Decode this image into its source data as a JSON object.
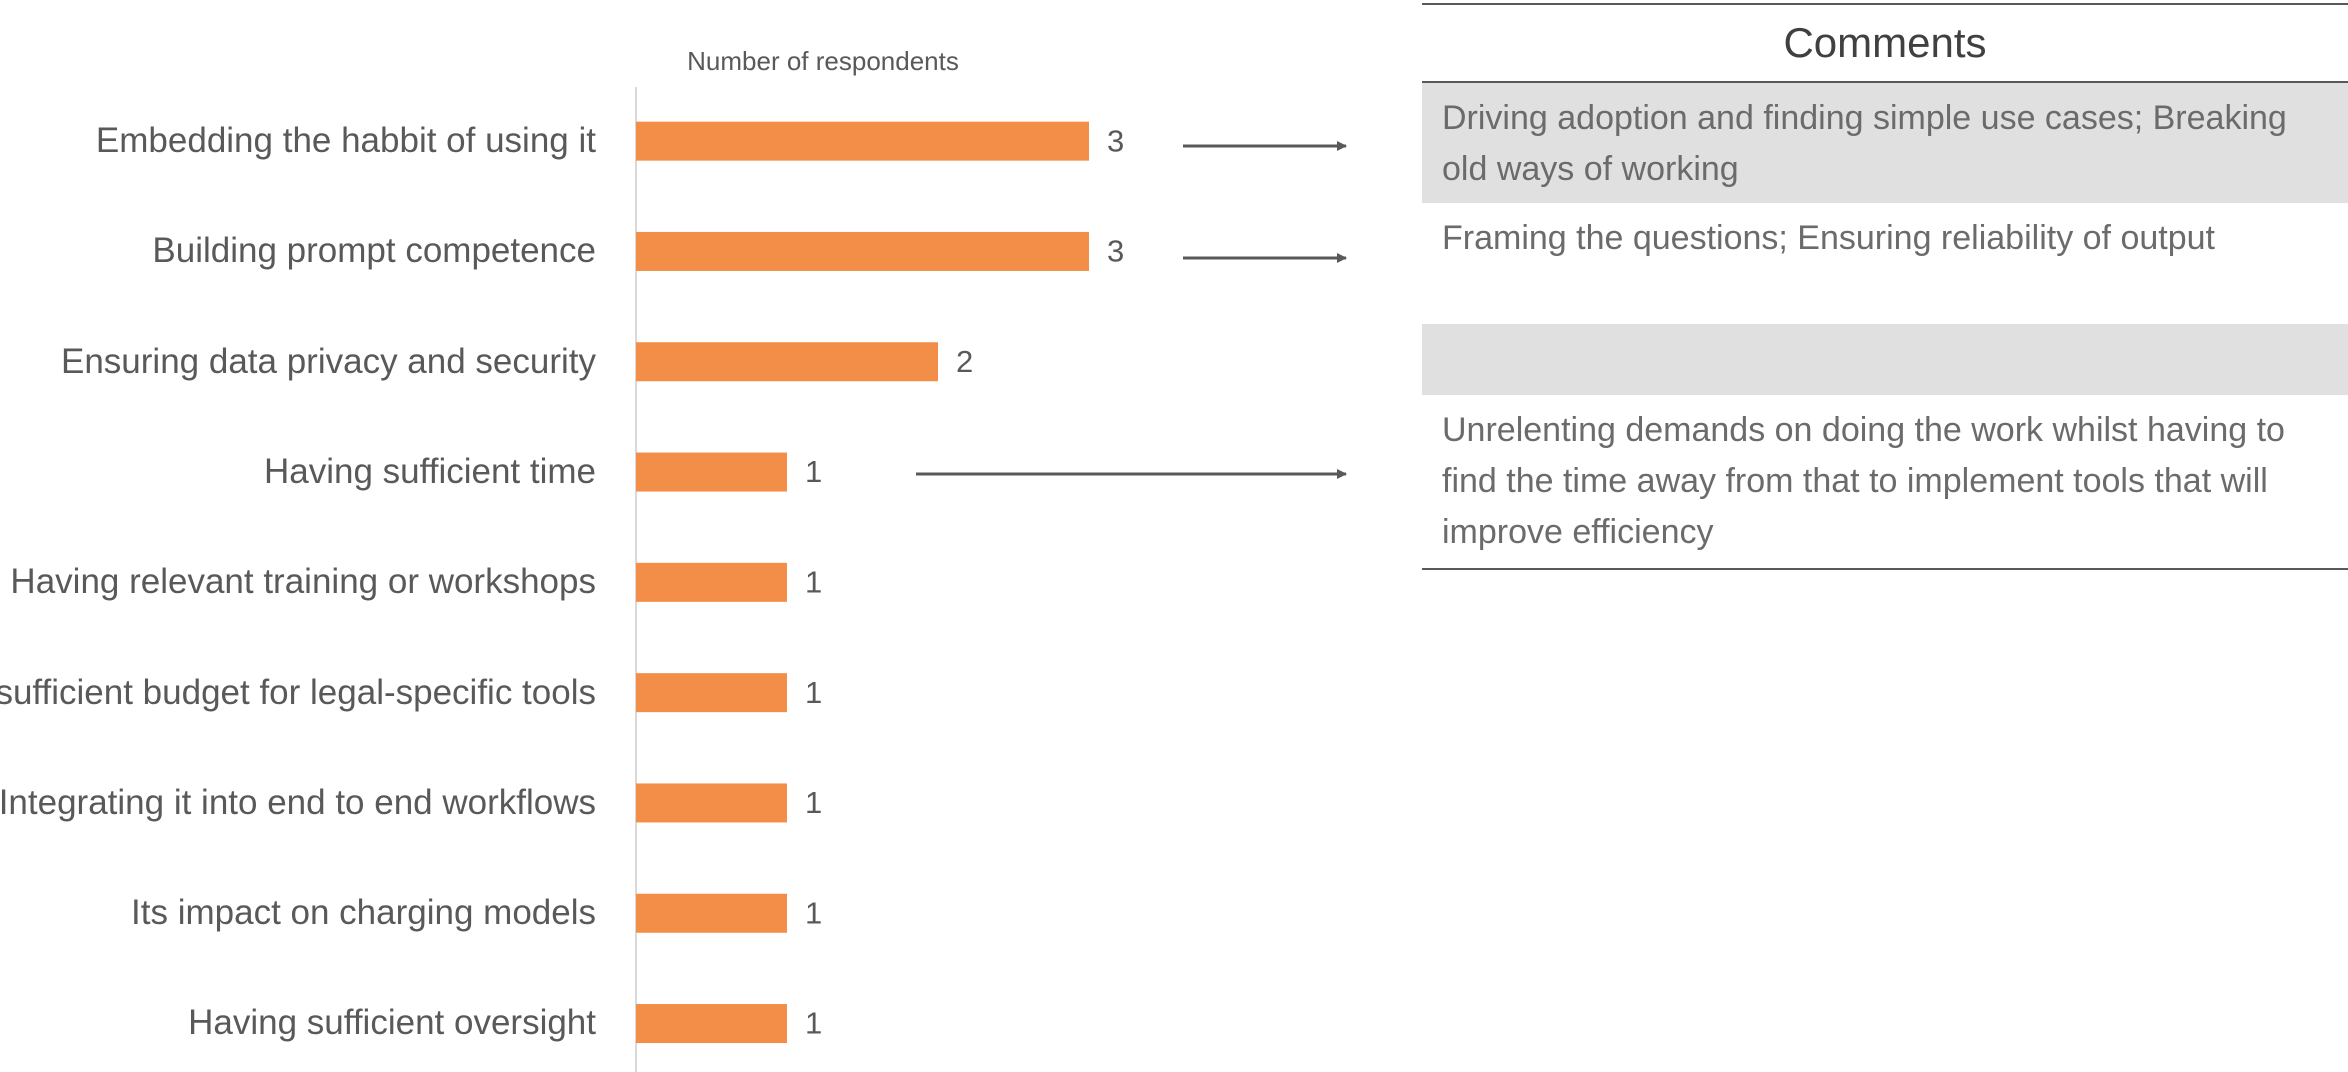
{
  "chart_data": {
    "type": "hbar",
    "x_label": "Number of respondents",
    "categories": [
      "Embedding the habbit of using it",
      "Building prompt competence",
      "Ensuring data privacy and security",
      "Having sufficient time",
      "Having relevant training or workshops",
      "Having sufficient budget for legal-specific tools",
      "Integrating it into end to end workflows",
      "Its impact on charging models",
      "Having sufficient oversight"
    ],
    "values": [
      3,
      3,
      2,
      1,
      1,
      1,
      1,
      1,
      1
    ],
    "color": "#f28e47",
    "xlim": [
      0,
      3
    ]
  },
  "comments": {
    "title": "Comments",
    "rows": [
      "Driving adoption and finding simple use cases; Breaking old ways of working",
      "Framing the questions; Ensuring reliability of output",
      null,
      "Unrelenting demands on doing the work whilst having to find the time away from that to implement tools that will improve efficiency"
    ]
  }
}
